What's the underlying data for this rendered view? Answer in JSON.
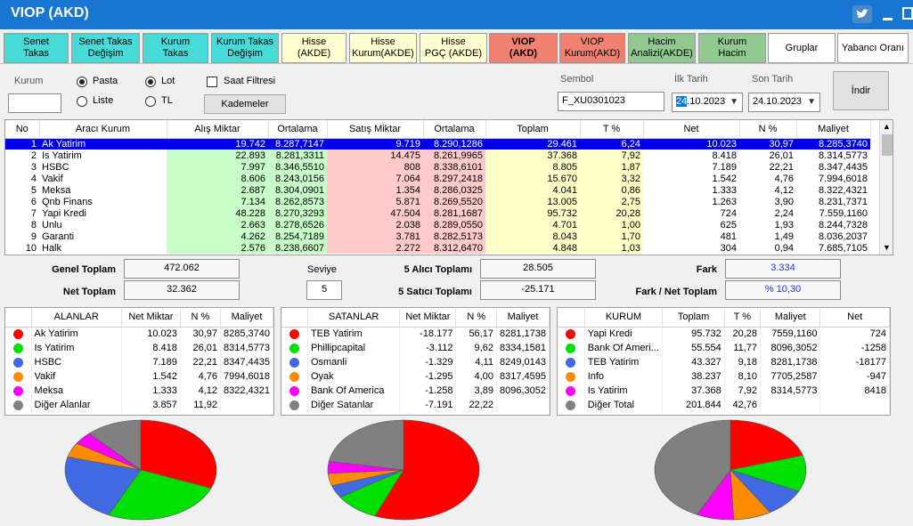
{
  "window": {
    "title": "VIOP (AKD)"
  },
  "tabs": [
    {
      "label": "Senet\nTakas",
      "color": "#47dbd8"
    },
    {
      "label": "Senet Takas\nDeğişim",
      "color": "#47dbd8"
    },
    {
      "label": "Kurum\nTakas",
      "color": "#47dbd8"
    },
    {
      "label": "Kurum Takas\nDeğişim",
      "color": "#47dbd8"
    },
    {
      "label": "Hisse\n(AKDE)",
      "color": "#ffffd2"
    },
    {
      "label": "Hisse\nKurum(AKDE)",
      "color": "#ffffd2"
    },
    {
      "label": "Hisse\nPGÇ (AKDE)",
      "color": "#ffffd2"
    },
    {
      "label": "VIOP\n(AKD)",
      "color": "#f08070",
      "active": true
    },
    {
      "label": "VIOP\nKurum(AKD)",
      "color": "#f08070"
    },
    {
      "label": "Hacim\nAnalizi(AKDE)",
      "color": "#90c890"
    },
    {
      "label": "Kurum\nHacim",
      "color": "#90c890"
    },
    {
      "label": "Gruplar",
      "color": "#ffffff"
    },
    {
      "label": "Yabancı Oranı",
      "color": "#ffffff"
    }
  ],
  "filters": {
    "kurum_label": "Kurum",
    "kurum_value": "",
    "pasta_label": "Pasta",
    "liste_label": "Liste",
    "lot_label": "Lot",
    "tl_label": "TL",
    "saat_filtresi_label": "Saat Filtresi",
    "kademeler_label": "Kademeler",
    "sembol_label": "Sembol",
    "sembol_value": "F_XU0301023",
    "ilk_tarih_label": "İlk Tarih",
    "ilk_tarih_day": "24",
    "ilk_tarih_rest": ".10.2023",
    "son_tarih_label": "Son Tarih",
    "son_tarih_value": "24.10.2023",
    "indir_label": "İndir"
  },
  "main_table": {
    "headers": [
      "No",
      "Aracı Kurum",
      "Alış Miktar",
      "Ortalama",
      "Satış Miktar",
      "Ortalama",
      "Toplam",
      "T %",
      "Net",
      "N %",
      "Maliyet"
    ],
    "rows": [
      [
        "1",
        "Ak Yatirim",
        "19.742",
        "8.287,7147",
        "9.719",
        "8.290,1286",
        "29.461",
        "6,24",
        "10.023",
        "30,97",
        "8.285,3740"
      ],
      [
        "2",
        "Is Yatirim",
        "22.893",
        "8.281,3311",
        "14.475",
        "8.261,9965",
        "37.368",
        "7,92",
        "8.418",
        "26,01",
        "8.314,5773"
      ],
      [
        "3",
        "HSBC",
        "7.997",
        "8.346,5510",
        "808",
        "8.338,6101",
        "8.805",
        "1,87",
        "7.189",
        "22,21",
        "8.347,4435"
      ],
      [
        "4",
        "Vakif",
        "8.606",
        "8.243,0156",
        "7.064",
        "8.297,2418",
        "15.670",
        "3,32",
        "1.542",
        "4,76",
        "7.994,6018"
      ],
      [
        "5",
        "Meksa",
        "2.687",
        "8.304,0901",
        "1.354",
        "8.286,0325",
        "4.041",
        "0,86",
        "1.333",
        "4,12",
        "8.322,4321"
      ],
      [
        "6",
        "Qnb Finans",
        "7.134",
        "8.262,8573",
        "5.871",
        "8.269,5520",
        "13.005",
        "2,75",
        "1.263",
        "3,90",
        "8.231,7371"
      ],
      [
        "7",
        "Yapi Kredi",
        "48.228",
        "8.270,3293",
        "47.504",
        "8.281,1687",
        "95.732",
        "20,28",
        "724",
        "2,24",
        "7.559,1160"
      ],
      [
        "8",
        "Unlu",
        "2.663",
        "8.278,6526",
        "2.038",
        "8.289,0550",
        "4.701",
        "1,00",
        "625",
        "1,93",
        "8.244,7328"
      ],
      [
        "9",
        "Garanti",
        "4.262",
        "8.254,7189",
        "3.781",
        "8.282,5173",
        "8.043",
        "1,70",
        "481",
        "1,49",
        "8.036,2037"
      ],
      [
        "10",
        "Halk",
        "2.576",
        "8.238,6607",
        "2.272",
        "8.312,6470",
        "4.848",
        "1,03",
        "304",
        "0,94",
        "7.685,7105"
      ]
    ]
  },
  "summary": {
    "genel_toplam_label": "Genel Toplam",
    "genel_toplam_value": "472.062",
    "net_toplam_label": "Net Toplam",
    "net_toplam_value": "32.362",
    "seviye_label": "Seviye",
    "seviye_value": "5",
    "alici_label": "5  Alıcı Toplamı",
    "alici_value": "28.505",
    "satici_label": "5  Satıcı Toplamı",
    "satici_value": "-25.171",
    "fark_label": "Fark",
    "fark_value": "3.334",
    "fark_net_label": "Fark / Net Toplam",
    "fark_net_value": "% 10,30"
  },
  "alanlar": {
    "headers": [
      "ALANLAR",
      "Net Miktar",
      "N %",
      "Maliyet"
    ],
    "rows": [
      {
        "color": "#ff0000",
        "name": "Ak Yatirim",
        "v1": "10.023",
        "v2": "30,97",
        "v3": "8285,3740",
        "pct": 30.97
      },
      {
        "color": "#00e000",
        "name": "Is Yatirim",
        "v1": "8.418",
        "v2": "26,01",
        "v3": "8314,5773",
        "pct": 26.01
      },
      {
        "color": "#4169e1",
        "name": "HSBC",
        "v1": "7.189",
        "v2": "22,21",
        "v3": "8347,4435",
        "pct": 22.21
      },
      {
        "color": "#ff8c00",
        "name": "Vakif",
        "v1": "1.542",
        "v2": "4,76",
        "v3": "7994,6018",
        "pct": 4.76
      },
      {
        "color": "#ff00ff",
        "name": "Meksa",
        "v1": "1.333",
        "v2": "4,12",
        "v3": "8322,4321",
        "pct": 4.12
      },
      {
        "color": "#808080",
        "name": "Diğer Alanlar",
        "v1": "3.857",
        "v2": "11,92",
        "v3": "",
        "pct": 11.92
      }
    ]
  },
  "satanlar": {
    "headers": [
      "SATANLAR",
      "Net Miktar",
      "N %",
      "Maliyet"
    ],
    "rows": [
      {
        "color": "#ff0000",
        "name": "TEB Yatirim",
        "v1": "-18.177",
        "v2": "56,17",
        "v3": "8281,1738",
        "pct": 56.17
      },
      {
        "color": "#00e000",
        "name": "Phillipcapital",
        "v1": "-3.112",
        "v2": "9,62",
        "v3": "8334,1581",
        "pct": 9.62
      },
      {
        "color": "#4169e1",
        "name": "Osmanli",
        "v1": "-1.329",
        "v2": "4,11",
        "v3": "8249,0143",
        "pct": 4.11
      },
      {
        "color": "#ff8c00",
        "name": "Oyak",
        "v1": "-1.295",
        "v2": "4,00",
        "v3": "8317,4595",
        "pct": 4.0
      },
      {
        "color": "#ff00ff",
        "name": "Bank Of America",
        "v1": "-1.258",
        "v2": "3,89",
        "v3": "8096,3052",
        "pct": 3.89
      },
      {
        "color": "#808080",
        "name": "Diğer Satanlar",
        "v1": "-7.191",
        "v2": "22,22",
        "v3": "",
        "pct": 22.22
      }
    ]
  },
  "kurum": {
    "headers": [
      "KURUM",
      "Toplam",
      "T %",
      "Maliyet",
      "Net"
    ],
    "rows": [
      {
        "color": "#ff0000",
        "name": "Yapi Kredi",
        "v1": "95.732",
        "v2": "20,28",
        "v3": "7559,1160",
        "v4": "724",
        "pct": 20.28
      },
      {
        "color": "#00e000",
        "name": "Bank Of Ameri...",
        "v1": "55.554",
        "v2": "11,77",
        "v3": "8096,3052",
        "v4": "-1258",
        "pct": 11.77
      },
      {
        "color": "#4169e1",
        "name": "TEB Yatirim",
        "v1": "43.327",
        "v2": "9,18",
        "v3": "8281,1738",
        "v4": "-18177",
        "pct": 9.18
      },
      {
        "color": "#ff8c00",
        "name": "Info",
        "v1": "38.237",
        "v2": "8,10",
        "v3": "7705,2587",
        "v4": "-947",
        "pct": 8.1
      },
      {
        "color": "#ff00ff",
        "name": "Is Yatirim",
        "v1": "37.368",
        "v2": "7,92",
        "v3": "8314,5773",
        "v4": "8418",
        "pct": 7.92
      },
      {
        "color": "#808080",
        "name": "Diğer Total",
        "v1": "201.844",
        "v2": "42,76",
        "v3": "",
        "v4": "",
        "pct": 42.76
      }
    ]
  }
}
